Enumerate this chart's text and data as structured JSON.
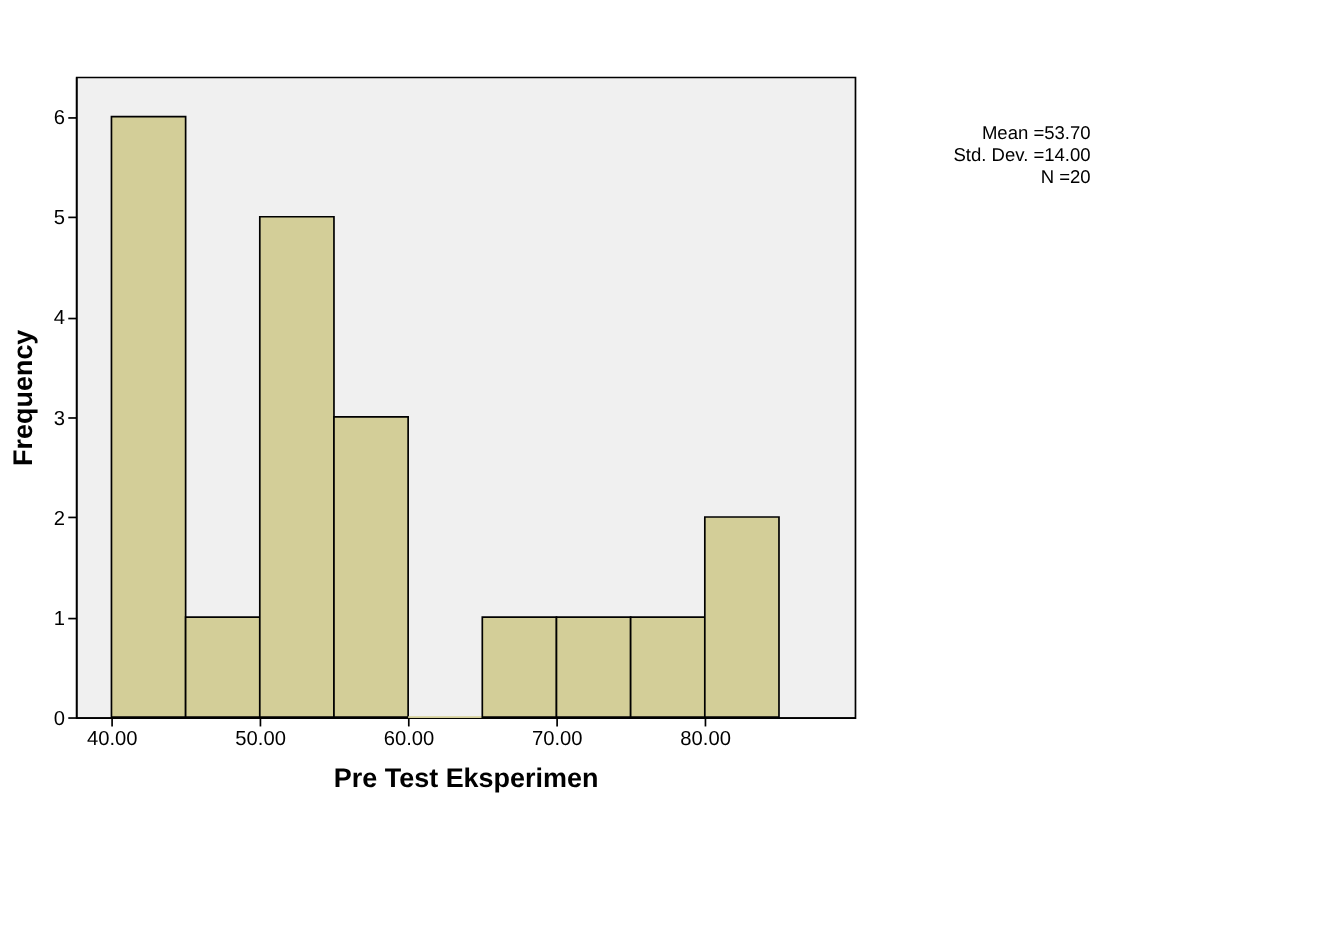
{
  "chart_data": {
    "type": "histogram",
    "xlabel": "Pre Test Eksperimen",
    "ylabel": "Frequency",
    "bins": [
      40,
      45,
      50,
      55,
      60,
      65,
      70,
      75,
      80,
      85
    ],
    "values": [
      6,
      1,
      5,
      3,
      0,
      1,
      1,
      1,
      2
    ],
    "color": "#d3ce98",
    "xlim": [
      37.6,
      90.1
    ],
    "ylim": [
      0,
      6.4
    ],
    "xticks": [
      {
        "value": 40,
        "label": "40.00"
      },
      {
        "value": 50,
        "label": "50.00"
      },
      {
        "value": 60,
        "label": "60.00"
      },
      {
        "value": 70,
        "label": "70.00"
      },
      {
        "value": 80,
        "label": "80.00"
      }
    ],
    "yticks": [
      0,
      1,
      2,
      3,
      4,
      5,
      6
    ],
    "grid": false,
    "annotations": [
      "Mean =53.70",
      "Std. Dev. =14.00",
      "N =20"
    ]
  }
}
